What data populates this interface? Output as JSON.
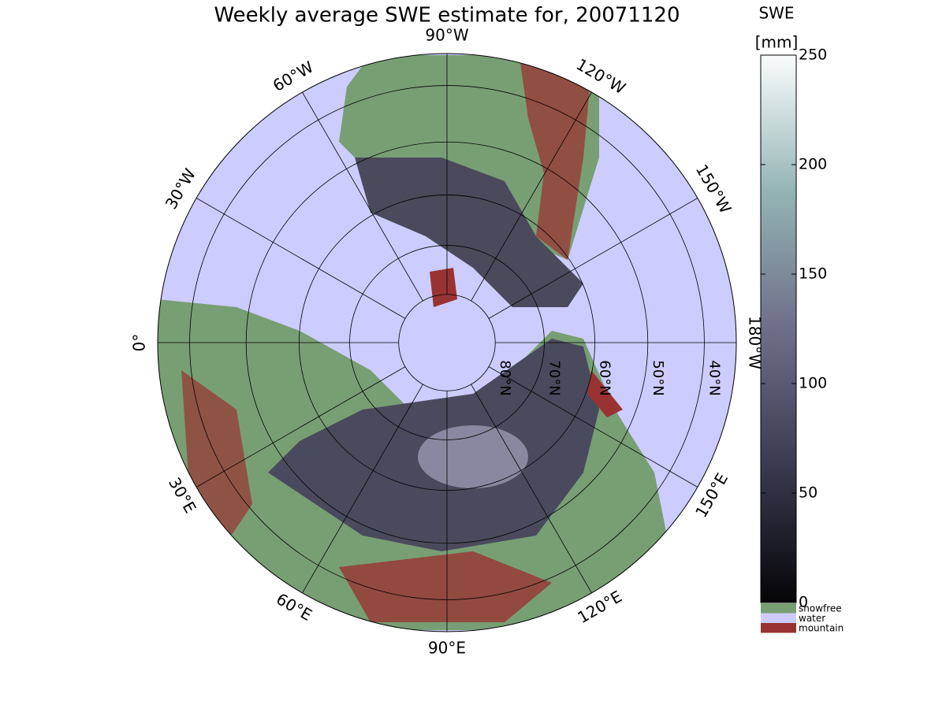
{
  "title": "Weekly average SWE estimate for, 20071120",
  "colorbar": {
    "label": "SWE",
    "unit": "[mm]",
    "lim": [
      0,
      250
    ],
    "ticks": [
      0,
      50,
      100,
      150,
      200,
      250
    ]
  },
  "legend": [
    {
      "name": "snowfree",
      "color": "#789e74"
    },
    {
      "name": "water",
      "color": "#ccccff"
    },
    {
      "name": "mountain",
      "color": "#993333"
    }
  ],
  "map": {
    "latitudes": [
      {
        "value": 80,
        "label": "80°N"
      },
      {
        "value": 70,
        "label": "70°N"
      },
      {
        "value": 60,
        "label": "60°N"
      },
      {
        "value": 50,
        "label": "50°N"
      },
      {
        "value": 40,
        "label": "40°N"
      }
    ],
    "longitudes": [
      {
        "value": -90,
        "label": "90°W"
      },
      {
        "value": -120,
        "label": "120°W"
      },
      {
        "value": -150,
        "label": "150°W"
      },
      {
        "value": 180,
        "label": "180°W"
      },
      {
        "value": 150,
        "label": "150°E"
      },
      {
        "value": 120,
        "label": "120°E"
      },
      {
        "value": 90,
        "label": "90°E"
      },
      {
        "value": 60,
        "label": "60°E"
      },
      {
        "value": 30,
        "label": "30°E"
      },
      {
        "value": 0,
        "label": "0°"
      },
      {
        "value": -30,
        "label": "30°W"
      },
      {
        "value": -60,
        "label": "60°W"
      }
    ]
  }
}
